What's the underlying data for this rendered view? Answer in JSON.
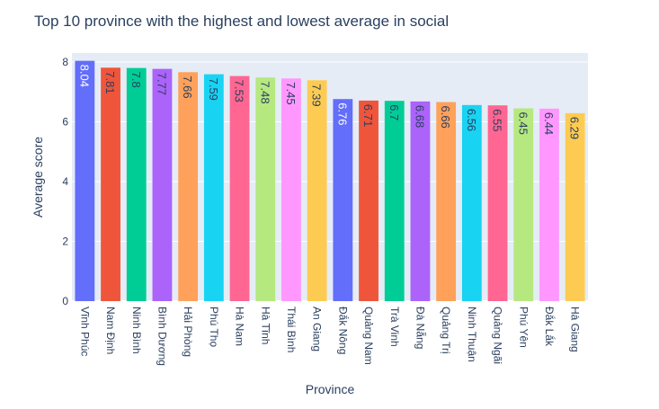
{
  "chart_data": {
    "type": "bar",
    "title": "Top 10 province with the highest and lowest average in social",
    "xlabel": "Province",
    "ylabel": "Average score",
    "ylim": [
      0,
      8.3
    ],
    "yticks": [
      0,
      2,
      4,
      6,
      8
    ],
    "grid": true,
    "legend": "none",
    "categories": [
      "Vĩnh Phúc",
      "Nam Định",
      "Ninh Bình",
      "Bình Dương",
      "Hải Phòng",
      "Phú Thọ",
      "Hà Nam",
      "Hà Tĩnh",
      "Thái Bình",
      "An Giang",
      "Đắk Nông",
      "Quảng Nam",
      "Trà Vinh",
      "Đà Nẵng",
      "Quảng Trị",
      "Ninh Thuận",
      "Quảng Ngãi",
      "Phú Yên",
      "Đắk Lắk",
      "Hà Giang"
    ],
    "values": [
      8.04,
      7.81,
      7.8,
      7.77,
      7.66,
      7.59,
      7.53,
      7.48,
      7.45,
      7.39,
      6.76,
      6.71,
      6.7,
      6.68,
      6.66,
      6.56,
      6.55,
      6.45,
      6.44,
      6.29
    ],
    "value_labels": [
      "8.04",
      "7.81",
      "7.8",
      "7.77",
      "7.66",
      "7.59",
      "7.53",
      "7.48",
      "7.45",
      "7.39",
      "6.76",
      "6.71",
      "6.7",
      "6.68",
      "6.66",
      "6.56",
      "6.55",
      "6.45",
      "6.44",
      "6.29"
    ],
    "colors": [
      "#636EFA",
      "#EF553B",
      "#00CC96",
      "#AB63FA",
      "#FFA15A",
      "#19D3F3",
      "#FF6692",
      "#B6E880",
      "#FF97FF",
      "#FECB52",
      "#636EFA",
      "#EF553B",
      "#00CC96",
      "#AB63FA",
      "#FFA15A",
      "#19D3F3",
      "#FF6692",
      "#B6E880",
      "#FF97FF",
      "#FECB52"
    ],
    "plot_background": "#E5ECF6",
    "text_color": "#2A3F5F"
  }
}
